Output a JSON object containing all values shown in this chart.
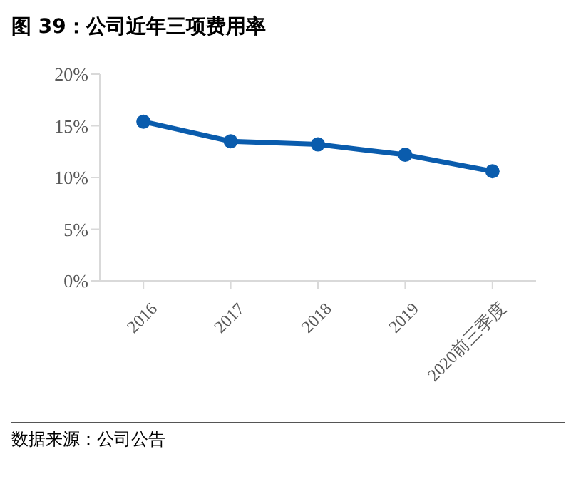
{
  "chart_data": {
    "type": "line",
    "title": "图 39：公司近年三项费用率",
    "categories": [
      "2016",
      "2017",
      "2018",
      "2019",
      "2020前三季度"
    ],
    "series": [
      {
        "color": "#0a5cad",
        "values": [
          15.4,
          13.5,
          13.2,
          12.2,
          10.6
        ]
      }
    ],
    "ylim": [
      0,
      20
    ],
    "yticks": [
      {
        "value": 0,
        "label": "0%"
      },
      {
        "value": 5,
        "label": "5%"
      },
      {
        "value": 10,
        "label": "10%"
      },
      {
        "value": 15,
        "label": "15%"
      },
      {
        "value": 20,
        "label": "20%"
      }
    ],
    "marker": "circle",
    "line_style": "solid",
    "annotations": [
      "数据来源：公司公告"
    ]
  }
}
